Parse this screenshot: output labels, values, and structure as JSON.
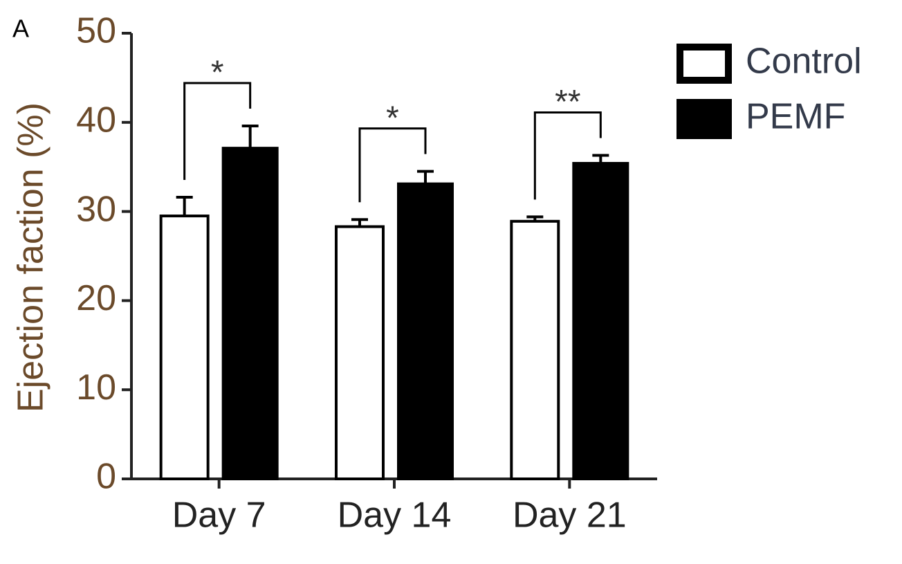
{
  "chart_data": {
    "type": "bar",
    "panel_label": "A",
    "y_label": "Ejection faction (%)",
    "categories": [
      "Day 7",
      "Day 14",
      "Day 21"
    ],
    "series": [
      {
        "name": "Control",
        "color": "#ffffff",
        "values": [
          29.5,
          28.3,
          28.9
        ],
        "errors": [
          2.1,
          0.8,
          0.5
        ]
      },
      {
        "name": "PEMF",
        "color": "#000000",
        "values": [
          37.1,
          33.1,
          35.4
        ],
        "errors": [
          2.5,
          1.4,
          0.9
        ]
      }
    ],
    "annotations": [
      "*",
      "*",
      "**"
    ],
    "ylim": [
      0,
      50
    ],
    "yticks": [
      0,
      10,
      20,
      30,
      40,
      50
    ]
  }
}
